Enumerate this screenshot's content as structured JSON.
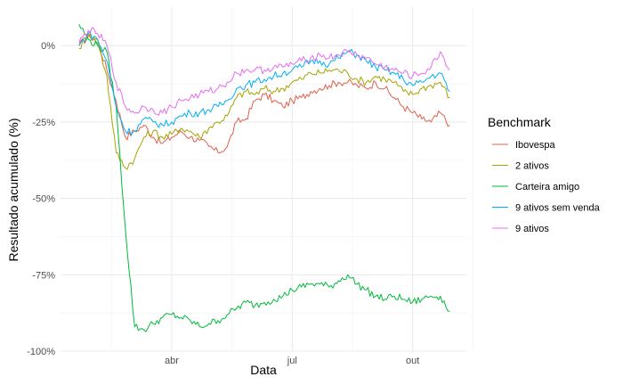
{
  "chart_data": {
    "type": "line",
    "xlabel": "Data",
    "ylabel": "Resultado acumulado (%)",
    "x_ticks": [
      {
        "label": "abr",
        "week": 10
      },
      {
        "label": "jul",
        "week": 23
      },
      {
        "label": "out",
        "week": 36
      }
    ],
    "xlim": [
      -2,
      41.8
    ],
    "y_ticks": [
      0,
      -25,
      -50,
      -75,
      -100
    ],
    "y_tick_labels": [
      "0%",
      "-25%",
      "-50%",
      "-75%",
      "-100%"
    ],
    "ylim": [
      -100,
      12.6
    ],
    "grid": true,
    "legend": {
      "title": "Benchmark",
      "position": "right"
    },
    "x_weeks": [
      0,
      1,
      2,
      3,
      4,
      5,
      6,
      7,
      8,
      9,
      10,
      11,
      12,
      13,
      14,
      15,
      16,
      17,
      18,
      19,
      20,
      21,
      22,
      23,
      24,
      25,
      26,
      27,
      28,
      29,
      30,
      31,
      32,
      33,
      34,
      35,
      36,
      37,
      38,
      39,
      40
    ],
    "series": [
      {
        "name": "Ibovespa",
        "color": "#E0604C",
        "values": [
          0,
          3,
          2,
          -8,
          -18,
          -30,
          -28,
          -26,
          -30,
          -32,
          -30,
          -28,
          -30,
          -31,
          -33,
          -35,
          -33,
          -25,
          -24,
          -18,
          -16,
          -18,
          -20,
          -18,
          -17,
          -15,
          -14,
          -13,
          -12,
          -12,
          -13,
          -14,
          -12,
          -14,
          -17,
          -20,
          -22,
          -24,
          -25,
          -22,
          -26
        ]
      },
      {
        "name": "2 ativos",
        "color": "#A3A500",
        "values": [
          -1,
          4,
          1,
          -10,
          -35,
          -40,
          -37,
          -30,
          -28,
          -30,
          -29,
          -27,
          -28,
          -30,
          -27,
          -25,
          -23,
          -17,
          -15,
          -16,
          -14,
          -15,
          -14,
          -12,
          -11,
          -9,
          -9,
          -8,
          -8,
          -9,
          -11,
          -12,
          -10,
          -11,
          -12,
          -15,
          -16,
          -14,
          -13,
          -12,
          -17
        ]
      },
      {
        "name": "Carteira amigo",
        "color": "#00BA38",
        "values": [
          7,
          2,
          0,
          -2,
          -20,
          -60,
          -92,
          -93,
          -91,
          -89,
          -88,
          -89,
          -90,
          -92,
          -91,
          -90,
          -88,
          -86,
          -84,
          -85,
          -84,
          -83,
          -82,
          -80,
          -79,
          -78,
          -78,
          -79,
          -77,
          -75,
          -78,
          -80,
          -82,
          -83,
          -82,
          -83,
          -84,
          -83,
          -82,
          -82,
          -87
        ]
      },
      {
        "name": "9 ativos sem venda",
        "color": "#00B0F6",
        "values": [
          0,
          4,
          2,
          -5,
          -20,
          -28,
          -28,
          -24,
          -25,
          -26,
          -25,
          -23,
          -22,
          -22,
          -21,
          -20,
          -18,
          -14,
          -13,
          -12,
          -11,
          -10,
          -9,
          -8,
          -7,
          -5,
          -5,
          -6,
          -4,
          -2,
          -3,
          -5,
          -7,
          -8,
          -9,
          -11,
          -13,
          -12,
          -10,
          -9,
          -15
        ]
      },
      {
        "name": "9 ativos",
        "color": "#E76BF3",
        "values": [
          1,
          5,
          4,
          0,
          -12,
          -20,
          -22,
          -20,
          -21,
          -22,
          -20,
          -18,
          -17,
          -16,
          -15,
          -14,
          -12,
          -9,
          -8,
          -8,
          -8,
          -7,
          -7,
          -6,
          -5,
          -4,
          -3,
          -4,
          -3,
          -2,
          -3,
          -4,
          -6,
          -7,
          -8,
          -9,
          -10,
          -9,
          -7,
          -2,
          -8
        ]
      }
    ]
  }
}
